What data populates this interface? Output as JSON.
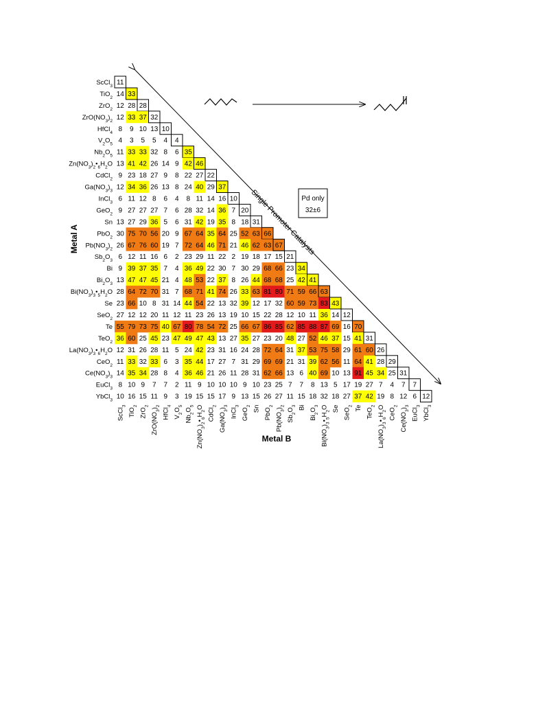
{
  "chart_data": {
    "type": "heatmap",
    "xlabel": "Metal B",
    "ylabel": "Metal A",
    "diagonal_label": "Single Promoter Catalysts",
    "pd_only_label": "Pd only",
    "pd_only_value": "32±6",
    "reactant_icon": "n-hexane-skeletal-icon",
    "product_icon": "hexene-skeletal-icon",
    "color_scale": {
      "white_below": 33,
      "yellow": "#ffff00",
      "orange": "#f07b14",
      "red": "#e31a1c",
      "yellow_range": [
        33,
        49
      ],
      "orange_range": [
        50,
        79
      ],
      "red_range": [
        80,
        100
      ]
    },
    "labels": [
      "ScCl3",
      "TiO2",
      "ZrO2",
      "ZrO(NO3)2",
      "HfCl4",
      "V2O5",
      "Nb2O5",
      "Zn(NO3)2•6H2O",
      "CdCl2",
      "Ga(NO3)3",
      "InCl3",
      "GeO2",
      "Sn",
      "PbO2",
      "Pb(NO3)2",
      "Sb2O3",
      "Bi",
      "Bi2O3",
      "Bi(NO3)3•5H2O",
      "Se",
      "SeO2",
      "Te",
      "TeO2",
      "La(NO3)3•6H2O",
      "CeO2",
      "Ce(NO3)3",
      "EuCl3",
      "YbCl3"
    ],
    "matrix": [
      [
        11
      ],
      [
        14,
        33
      ],
      [
        12,
        28,
        28
      ],
      [
        12,
        33,
        37,
        32
      ],
      [
        8,
        9,
        10,
        13,
        10
      ],
      [
        4,
        3,
        5,
        5,
        4,
        4
      ],
      [
        11,
        33,
        33,
        32,
        8,
        6,
        35
      ],
      [
        13,
        41,
        42,
        26,
        14,
        9,
        42,
        46
      ],
      [
        9,
        23,
        18,
        27,
        9,
        8,
        22,
        27,
        22
      ],
      [
        12,
        34,
        36,
        26,
        13,
        8,
        24,
        40,
        29,
        37
      ],
      [
        6,
        11,
        12,
        8,
        6,
        4,
        8,
        11,
        14,
        16,
        10
      ],
      [
        9,
        27,
        27,
        27,
        7,
        6,
        28,
        32,
        14,
        36,
        7,
        20
      ],
      [
        13,
        27,
        29,
        36,
        5,
        6,
        31,
        42,
        19,
        35,
        8,
        18,
        31
      ],
      [
        30,
        75,
        70,
        56,
        20,
        9,
        67,
        64,
        35,
        64,
        25,
        52,
        63,
        66
      ],
      [
        26,
        67,
        76,
        60,
        19,
        7,
        72,
        64,
        46,
        71,
        21,
        46,
        62,
        63,
        67
      ],
      [
        6,
        12,
        11,
        16,
        6,
        2,
        23,
        29,
        11,
        22,
        2,
        19,
        18,
        17,
        15,
        21
      ],
      [
        9,
        39,
        37,
        35,
        7,
        4,
        36,
        49,
        22,
        30,
        7,
        30,
        29,
        68,
        66,
        23,
        34
      ],
      [
        13,
        47,
        47,
        45,
        21,
        4,
        48,
        53,
        22,
        37,
        8,
        26,
        44,
        68,
        68,
        25,
        42,
        41
      ],
      [
        28,
        64,
        72,
        70,
        31,
        7,
        68,
        71,
        41,
        74,
        26,
        33,
        63,
        81,
        80,
        71,
        59,
        66,
        63
      ],
      [
        23,
        66,
        10,
        8,
        31,
        14,
        44,
        54,
        22,
        13,
        32,
        39,
        12,
        17,
        32,
        60,
        59,
        73,
        83,
        43
      ],
      [
        27,
        12,
        12,
        20,
        11,
        12,
        11,
        23,
        26,
        13,
        19,
        10,
        15,
        22,
        28,
        12,
        10,
        11,
        36,
        14,
        12
      ],
      [
        55,
        79,
        73,
        75,
        40,
        67,
        80,
        78,
        54,
        72,
        25,
        66,
        67,
        86,
        85,
        62,
        85,
        88,
        87,
        69,
        16,
        70
      ],
      [
        36,
        60,
        25,
        45,
        23,
        47,
        49,
        47,
        43,
        13,
        27,
        35,
        27,
        23,
        20,
        48,
        27,
        52,
        46,
        37,
        15,
        41,
        31
      ],
      [
        12,
        31,
        26,
        28,
        11,
        5,
        24,
        42,
        23,
        31,
        16,
        24,
        28,
        72,
        64,
        31,
        37,
        53,
        75,
        58,
        29,
        61,
        60,
        26
      ],
      [
        11,
        33,
        32,
        33,
        6,
        3,
        35,
        44,
        17,
        27,
        7,
        31,
        29,
        69,
        69,
        21,
        31,
        39,
        62,
        56,
        11,
        64,
        41,
        28,
        29
      ],
      [
        14,
        35,
        34,
        28,
        8,
        4,
        36,
        46,
        21,
        26,
        11,
        28,
        31,
        62,
        66,
        13,
        6,
        40,
        69,
        10,
        13,
        91,
        45,
        34,
        25,
        31
      ],
      [
        8,
        10,
        9,
        7,
        7,
        2,
        11,
        9,
        10,
        10,
        10,
        9,
        10,
        23,
        25,
        7,
        7,
        8,
        13,
        5,
        17,
        19,
        27,
        7,
        4,
        7,
        7
      ],
      [
        10,
        16,
        15,
        11,
        9,
        3,
        19,
        15,
        15,
        17,
        9,
        13,
        15,
        26,
        27,
        11,
        15,
        18,
        32,
        18,
        27,
        37,
        42,
        19,
        8,
        12,
        6,
        12
      ]
    ]
  }
}
